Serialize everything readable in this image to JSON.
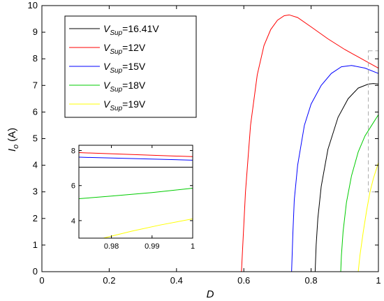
{
  "chart_data": [
    {
      "type": "line",
      "title": "",
      "xlabel": "D",
      "ylabel": {
        "symbol": "I",
        "subscript": "o",
        "unit": "(A)"
      },
      "xlim": [
        0,
        1
      ],
      "ylim": [
        0,
        10
      ],
      "xticks": [
        0,
        0.2,
        0.4,
        0.6,
        0.8,
        1
      ],
      "xtick_labels": [
        "0",
        "0.2",
        "0.4",
        "0.6",
        "0.8",
        "1"
      ],
      "yticks": [
        0,
        1,
        2,
        3,
        4,
        5,
        6,
        7,
        8,
        9,
        10
      ],
      "ytick_labels": [
        "0",
        "1",
        "2",
        "3",
        "4",
        "5",
        "6",
        "7",
        "8",
        "9",
        "10"
      ],
      "grid": false,
      "legend_position": "top-left",
      "series": [
        {
          "name": "V_Sup=16.41V",
          "legend": {
            "prefix": "V",
            "sub": "Sup",
            "suffix": "=16.41V"
          },
          "color": "#000000",
          "x": [
            0.05,
            0.812,
            0.815,
            0.82,
            0.83,
            0.85,
            0.88,
            0.91,
            0.94,
            0.97,
            0.985,
            1.0
          ],
          "y": [
            0,
            0,
            1.0,
            2.0,
            3.2,
            4.6,
            5.8,
            6.5,
            6.9,
            7.05,
            7.07,
            7.05
          ]
        },
        {
          "name": "V_Sup=12V",
          "legend": {
            "prefix": "V",
            "sub": "Sup",
            "suffix": "=12V"
          },
          "color": "#ff0000",
          "x": [
            0.05,
            0.593,
            0.597,
            0.605,
            0.62,
            0.64,
            0.66,
            0.68,
            0.7,
            0.72,
            0.735,
            0.76,
            0.8,
            0.85,
            0.9,
            0.95,
            1.0
          ],
          "y": [
            0,
            0,
            1.0,
            3.0,
            5.5,
            7.4,
            8.5,
            9.1,
            9.45,
            9.62,
            9.65,
            9.55,
            9.2,
            8.75,
            8.35,
            8.0,
            7.65
          ]
        },
        {
          "name": "V_Sup=15V",
          "legend": {
            "prefix": "V",
            "sub": "Sup",
            "suffix": "=15V"
          },
          "color": "#0000ff",
          "x": [
            0.05,
            0.742,
            0.746,
            0.75,
            0.76,
            0.78,
            0.8,
            0.83,
            0.86,
            0.89,
            0.92,
            0.96,
            1.0
          ],
          "y": [
            0,
            0,
            1.5,
            2.7,
            4.0,
            5.5,
            6.3,
            7.0,
            7.45,
            7.7,
            7.75,
            7.65,
            7.45
          ]
        },
        {
          "name": "V_Sup=18V",
          "legend": {
            "prefix": "V",
            "sub": "Sup",
            "suffix": "=18V"
          },
          "color": "#00cc00",
          "x": [
            0.05,
            0.888,
            0.89,
            0.895,
            0.905,
            0.92,
            0.94,
            0.96,
            0.98,
            1.0
          ],
          "y": [
            0,
            0,
            0.6,
            1.5,
            2.6,
            3.6,
            4.5,
            5.1,
            5.5,
            5.9
          ]
        },
        {
          "name": "V_Sup=19V",
          "legend": {
            "prefix": "V",
            "sub": "Sup",
            "suffix": "=19V"
          },
          "color": "#ffff00",
          "x": [
            0.05,
            0.94,
            0.945,
            0.955,
            0.965,
            0.975,
            0.985,
            1.0
          ],
          "y": [
            0,
            0,
            0.6,
            1.5,
            2.3,
            3.0,
            3.5,
            4.1
          ]
        }
      ],
      "annotations": {
        "zoom_box": {
          "x": [
            0.97,
            1.0
          ],
          "y": [
            3.0,
            8.3
          ],
          "color": "#aaaaaa",
          "style": "dashed"
        }
      }
    },
    {
      "type": "line",
      "title": "",
      "xlabel": "",
      "ylabel": "",
      "xlim": [
        0.972,
        1.0
      ],
      "ylim": [
        3.0,
        8.3
      ],
      "xticks": [
        0.98,
        0.99,
        1.0
      ],
      "xtick_labels": [
        "0.98",
        "0.99",
        "1"
      ],
      "yticks": [
        4,
        6,
        8
      ],
      "ytick_labels": [
        "4",
        "6",
        "8"
      ],
      "grid": false,
      "series": [
        {
          "color": "#ff0000",
          "x": [
            0.972,
            1.0
          ],
          "y": [
            7.88,
            7.65
          ]
        },
        {
          "color": "#0000ff",
          "x": [
            0.972,
            1.0
          ],
          "y": [
            7.62,
            7.45
          ]
        },
        {
          "color": "#000000",
          "x": [
            0.972,
            1.0
          ],
          "y": [
            7.05,
            7.05
          ]
        },
        {
          "color": "#00cc00",
          "x": [
            0.972,
            0.98,
            0.99,
            1.0
          ],
          "y": [
            5.25,
            5.4,
            5.6,
            5.85
          ]
        },
        {
          "color": "#ffff00",
          "x": [
            0.978,
            0.985,
            0.992,
            1.0
          ],
          "y": [
            3.0,
            3.4,
            3.75,
            4.1
          ]
        }
      ]
    }
  ]
}
